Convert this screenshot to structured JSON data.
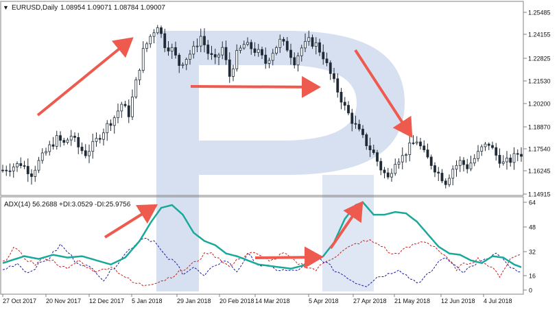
{
  "header": {
    "symbol": "EURUSD,Daily",
    "ohlc": "1.08954 1.09071 1.08784 1.09007"
  },
  "indicator": {
    "label": "ADX(14) 56.2688 +DI:3.0529 -DI:25.9756"
  },
  "colors": {
    "candle": "#1f2a36",
    "adx": "#19a89a",
    "plus_di": "#1a1aa8",
    "minus_di": "#cc1a1a",
    "arrow": "#ee5a4e",
    "watermark": "#c9d6ec",
    "frame": "#808080"
  },
  "chart_data": [
    {
      "type": "candlestick",
      "y_ticks": [
        "1.25485",
        "1.24155",
        "1.22825",
        "1.21530",
        "1.20200",
        "1.18870",
        "1.17540",
        "1.16245",
        "1.14915"
      ],
      "x_ticks": [
        "27 Oct 2017",
        "20 Nov 2017",
        "12 Dec 2017",
        "5 Jan 2018",
        "29 Jan 2018",
        "20 Feb 2018",
        "14 Mar 2018",
        "5 Apr 2018",
        "27 Apr 2018",
        "21 May 2018",
        "12 Jun 2018",
        "4 Jul 2018"
      ],
      "ylim": [
        1.1475,
        1.2575
      ],
      "close_path": [
        [
          0,
          1.162
        ],
        [
          5,
          1.166
        ],
        [
          8,
          1.16
        ],
        [
          10,
          1.167
        ],
        [
          13,
          1.176
        ],
        [
          15,
          1.181
        ],
        [
          17,
          1.178
        ],
        [
          19,
          1.183
        ],
        [
          21,
          1.176
        ],
        [
          23,
          1.172
        ],
        [
          25,
          1.177
        ],
        [
          27,
          1.183
        ],
        [
          29,
          1.189
        ],
        [
          31,
          1.194
        ],
        [
          33,
          1.202
        ],
        [
          35,
          1.196
        ],
        [
          37,
          1.215
        ],
        [
          39,
          1.234
        ],
        [
          41,
          1.243
        ],
        [
          43,
          1.25
        ],
        [
          45,
          1.238
        ],
        [
          47,
          1.235
        ],
        [
          49,
          1.226
        ],
        [
          51,
          1.23
        ],
        [
          53,
          1.235
        ],
        [
          55,
          1.243
        ],
        [
          57,
          1.233
        ],
        [
          59,
          1.228
        ],
        [
          61,
          1.236
        ],
        [
          63,
          1.219
        ],
        [
          65,
          1.232
        ],
        [
          67,
          1.238
        ],
        [
          69,
          1.236
        ],
        [
          71,
          1.233
        ],
        [
          73,
          1.227
        ],
        [
          75,
          1.234
        ],
        [
          77,
          1.24
        ],
        [
          79,
          1.236
        ],
        [
          81,
          1.228
        ],
        [
          83,
          1.236
        ],
        [
          85,
          1.24
        ],
        [
          87,
          1.238
        ],
        [
          89,
          1.231
        ],
        [
          91,
          1.22
        ],
        [
          93,
          1.21
        ],
        [
          95,
          1.2
        ],
        [
          97,
          1.192
        ],
        [
          99,
          1.185
        ],
        [
          101,
          1.178
        ],
        [
          103,
          1.172
        ],
        [
          105,
          1.163
        ],
        [
          107,
          1.157
        ],
        [
          109,
          1.168
        ],
        [
          111,
          1.17
        ],
        [
          113,
          1.176
        ],
        [
          115,
          1.18
        ],
        [
          117,
          1.172
        ],
        [
          119,
          1.166
        ],
        [
          121,
          1.16
        ],
        [
          123,
          1.155
        ],
        [
          125,
          1.163
        ],
        [
          127,
          1.167
        ],
        [
          129,
          1.164
        ],
        [
          131,
          1.169
        ],
        [
          133,
          1.175
        ],
        [
          135,
          1.178
        ],
        [
          137,
          1.171
        ],
        [
          139,
          1.166
        ],
        [
          141,
          1.168
        ],
        [
          143,
          1.172
        ]
      ]
    },
    {
      "type": "line",
      "y_ticks": [
        "64",
        "48",
        "32",
        "16",
        "0"
      ],
      "ylim": [
        0,
        64
      ],
      "series": [
        {
          "name": "ADX(14)",
          "values": [
            [
              0,
              20
            ],
            [
              6,
              25
            ],
            [
              10,
              23
            ],
            [
              14,
              26
            ],
            [
              18,
              24
            ],
            [
              22,
              25
            ],
            [
              26,
              22
            ],
            [
              30,
              19
            ],
            [
              34,
              24
            ],
            [
              38,
              36
            ],
            [
              41,
              49
            ],
            [
              44,
              60
            ],
            [
              47,
              62
            ],
            [
              50,
              55
            ],
            [
              53,
              42
            ],
            [
              56,
              36
            ],
            [
              59,
              33
            ],
            [
              62,
              27
            ],
            [
              65,
              25
            ],
            [
              68,
              22
            ],
            [
              71,
              19
            ],
            [
              74,
              18
            ],
            [
              77,
              17
            ],
            [
              80,
              16
            ],
            [
              83,
              18
            ],
            [
              86,
              21
            ],
            [
              89,
              25
            ],
            [
              92,
              35
            ],
            [
              95,
              52
            ],
            [
              98,
              62
            ],
            [
              100,
              64
            ],
            [
              103,
              55
            ],
            [
              106,
              55
            ],
            [
              109,
              57
            ],
            [
              112,
              56
            ],
            [
              115,
              50
            ],
            [
              118,
              41
            ],
            [
              121,
              32
            ],
            [
              124,
              27
            ],
            [
              127,
              26
            ],
            [
              130,
              22
            ],
            [
              133,
              20
            ],
            [
              136,
              25
            ],
            [
              139,
              24
            ],
            [
              142,
              19
            ],
            [
              144,
              17
            ]
          ]
        },
        {
          "name": "+DI",
          "values": [
            [
              0,
              15
            ],
            [
              4,
              20
            ],
            [
              7,
              13
            ],
            [
              10,
              19
            ],
            [
              13,
              24
            ],
            [
              16,
              33
            ],
            [
              18,
              28
            ],
            [
              20,
              22
            ],
            [
              23,
              18
            ],
            [
              26,
              14
            ],
            [
              28,
              8
            ],
            [
              30,
              14
            ],
            [
              33,
              24
            ],
            [
              36,
              32
            ],
            [
              39,
              39
            ],
            [
              42,
              36
            ],
            [
              45,
              25
            ],
            [
              48,
              20
            ],
            [
              50,
              13
            ],
            [
              53,
              17
            ],
            [
              56,
              10
            ],
            [
              59,
              19
            ],
            [
              62,
              22
            ],
            [
              65,
              14
            ],
            [
              68,
              26
            ],
            [
              71,
              19
            ],
            [
              74,
              17
            ],
            [
              77,
              15
            ],
            [
              80,
              14
            ],
            [
              83,
              16
            ],
            [
              86,
              26
            ],
            [
              89,
              22
            ],
            [
              92,
              15
            ],
            [
              95,
              11
            ],
            [
              98,
              6
            ],
            [
              101,
              4
            ],
            [
              104,
              10
            ],
            [
              107,
              12
            ],
            [
              110,
              16
            ],
            [
              113,
              9
            ],
            [
              116,
              6
            ],
            [
              119,
              14
            ],
            [
              122,
              24
            ],
            [
              125,
              20
            ],
            [
              128,
              14
            ],
            [
              131,
              19
            ],
            [
              134,
              22
            ],
            [
              137,
              27
            ],
            [
              140,
              19
            ],
            [
              143,
              13
            ]
          ]
        },
        {
          "name": "-DI",
          "values": [
            [
              0,
              20
            ],
            [
              3,
              31
            ],
            [
              6,
              24
            ],
            [
              9,
              19
            ],
            [
              12,
              24
            ],
            [
              15,
              20
            ],
            [
              18,
              15
            ],
            [
              21,
              22
            ],
            [
              24,
              16
            ],
            [
              27,
              14
            ],
            [
              30,
              18
            ],
            [
              33,
              12
            ],
            [
              36,
              6
            ],
            [
              39,
              4
            ],
            [
              42,
              6
            ],
            [
              45,
              8
            ],
            [
              48,
              12
            ],
            [
              51,
              16
            ],
            [
              54,
              22
            ],
            [
              57,
              28
            ],
            [
              60,
              24
            ],
            [
              63,
              17
            ],
            [
              66,
              24
            ],
            [
              69,
              28
            ],
            [
              72,
              24
            ],
            [
              75,
              22
            ],
            [
              78,
              27
            ],
            [
              81,
              21
            ],
            [
              84,
              18
            ],
            [
              87,
              15
            ],
            [
              90,
              22
            ],
            [
              93,
              26
            ],
            [
              96,
              31
            ],
            [
              99,
              35
            ],
            [
              102,
              36
            ],
            [
              105,
              33
            ],
            [
              108,
              26
            ],
            [
              111,
              29
            ],
            [
              114,
              33
            ],
            [
              117,
              36
            ],
            [
              120,
              32
            ],
            [
              123,
              24
            ],
            [
              126,
              16
            ],
            [
              129,
              20
            ],
            [
              132,
              23
            ],
            [
              135,
              18
            ],
            [
              138,
              11
            ],
            [
              141,
              23
            ],
            [
              144,
              27
            ]
          ]
        }
      ]
    }
  ]
}
